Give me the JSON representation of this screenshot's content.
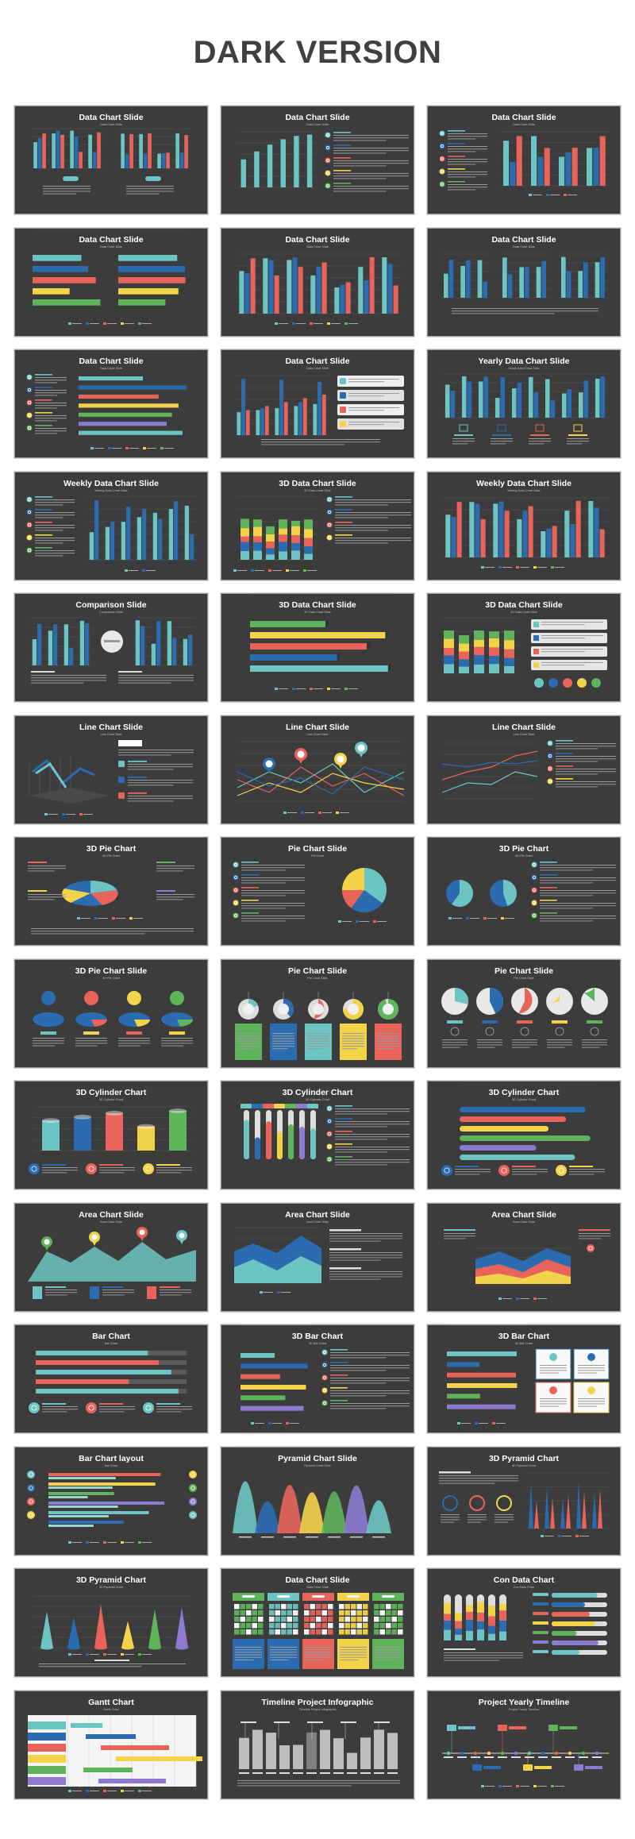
{
  "page": {
    "heading": "DARK VERSION"
  },
  "palette": {
    "teal": "#6cc5c2",
    "blue": "#2b6cb0",
    "red": "#e8645b",
    "yellow": "#f3d34a",
    "green": "#5fb35a",
    "purple": "#8c7bd1",
    "background": "#3c3c3c"
  },
  "slides": [
    {
      "title": "Data Chart Slide",
      "subtitle": "Data Chart Slide",
      "kind": "bars2"
    },
    {
      "title": "Data Chart Slide",
      "subtitle": "Data Chart Slide",
      "kind": "barcheck"
    },
    {
      "title": "Data Chart Slide",
      "subtitle": "Data Chart Slide",
      "kind": "textbars"
    },
    {
      "title": "Data Chart Slide",
      "subtitle": "Data Chart Slide",
      "kind": "hbars2"
    },
    {
      "title": "Data Chart Slide",
      "subtitle": "Data Chart Slide",
      "kind": "bars"
    },
    {
      "title": "Data Chart Slide",
      "subtitle": "Data Chart Slide",
      "kind": "bars3"
    },
    {
      "title": "Data Chart Slide",
      "subtitle": "Data Chart Slide",
      "kind": "checkhbars"
    },
    {
      "title": "Data Chart Slide",
      "subtitle": "Data Chart Slide",
      "kind": "barsboxes"
    },
    {
      "title": "Yearly Data Chart Slide",
      "subtitle": "Yearly Data Chart Slide",
      "kind": "barsicons"
    },
    {
      "title": "Weekly Data Chart Slide",
      "subtitle": "Weekly Data Chart Slide",
      "kind": "checkbars"
    },
    {
      "title": "3D Data Chart Slide",
      "subtitle": "3D Data Chart Slide",
      "kind": "stacked"
    },
    {
      "title": "Weekly Data Chart Slide",
      "subtitle": "Weekly Data Chart Slide",
      "kind": "bars"
    },
    {
      "title": "Comparison Slide",
      "subtitle": "Comparison Slide",
      "kind": "compare"
    },
    {
      "title": "3D Data Chart Slide",
      "subtitle": "3D Data Chart Slide",
      "kind": "hbars3d"
    },
    {
      "title": "3D Data Chart Slide",
      "subtitle": "3D Data Chart Slide",
      "kind": "stackedboxes"
    },
    {
      "title": "Line Chart Slide",
      "subtitle": "Line Chart Slide",
      "kind": "line3d"
    },
    {
      "title": "Line Chart Slide",
      "subtitle": "Line Chart Slide",
      "kind": "linepins"
    },
    {
      "title": "Line Chart Slide",
      "subtitle": "Line Chart Slide",
      "kind": "lineicons"
    },
    {
      "title": "3D Pie Chart",
      "subtitle": "3D Pie Chart",
      "kind": "pie3d"
    },
    {
      "title": "Pie Chart Slide",
      "subtitle": "Pie Chart",
      "kind": "piecheck"
    },
    {
      "title": "3D Pie Chart",
      "subtitle": "3D Pie Chart",
      "kind": "pies2"
    },
    {
      "title": "3D Pie Chart Slide",
      "subtitle": "3D Pie Chart",
      "kind": "pies4"
    },
    {
      "title": "Pie Chart Slide",
      "subtitle": "Pie Chart Slide",
      "kind": "pies5"
    },
    {
      "title": "Pie Chart Slide",
      "subtitle": "Pie Chart Slide",
      "kind": "pies5b"
    },
    {
      "title": "3D Cylinder Chart",
      "subtitle": "3D Cylinder Chart",
      "kind": "cylinders"
    },
    {
      "title": "3D Cylinder Chart",
      "subtitle": "3D Cylinder Chart",
      "kind": "cyltubes"
    },
    {
      "title": "3D Cylinder Chart",
      "subtitle": "3D Cylinder Chart",
      "kind": "hcyl"
    },
    {
      "title": "Area Chart Slide",
      "subtitle": "Area Chart Slide",
      "kind": "areapins"
    },
    {
      "title": "Area Chart Slide",
      "subtitle": "Area Chart Slide",
      "kind": "area"
    },
    {
      "title": "Area Chart Slide",
      "subtitle": "Area Chart Slide",
      "kind": "area3"
    },
    {
      "title": "Bar Chart",
      "subtitle": "Bar Chart",
      "kind": "hbars"
    },
    {
      "title": "3D Bar Chart",
      "subtitle": "3D Bar Chart",
      "kind": "hbarscheck"
    },
    {
      "title": "3D Bar Chart",
      "subtitle": "3D Bar Chart",
      "kind": "hbarsboxes"
    },
    {
      "title": "Bar Chart layout",
      "subtitle": "Bar Chart",
      "kind": "barlayout"
    },
    {
      "title": "Pyramid Chart Slide",
      "subtitle": "Pyramid Chart Slide",
      "kind": "pyramids"
    },
    {
      "title": "3D Pyramid Chart",
      "subtitle": "3D Pyramid Chart",
      "kind": "pyramidtext"
    },
    {
      "title": "3D Pyramid Chart",
      "subtitle": "3D Pyramid Chart",
      "kind": "cones"
    },
    {
      "title": "Data Chart Slide",
      "subtitle": "Data Chart Slide",
      "kind": "tables"
    },
    {
      "title": "Con Data Chart",
      "subtitle": "Con Data Chart",
      "kind": "conbars"
    },
    {
      "title": "Gantt Chart",
      "subtitle": "Gantt Chart",
      "kind": "gantt"
    },
    {
      "title": "Timeline Project Infographic",
      "subtitle": "Timeline Project Infographic",
      "kind": "timelinebars"
    },
    {
      "title": "Project Yearly Timeline",
      "subtitle": "Project Yearly Timeline",
      "kind": "timeline"
    }
  ]
}
